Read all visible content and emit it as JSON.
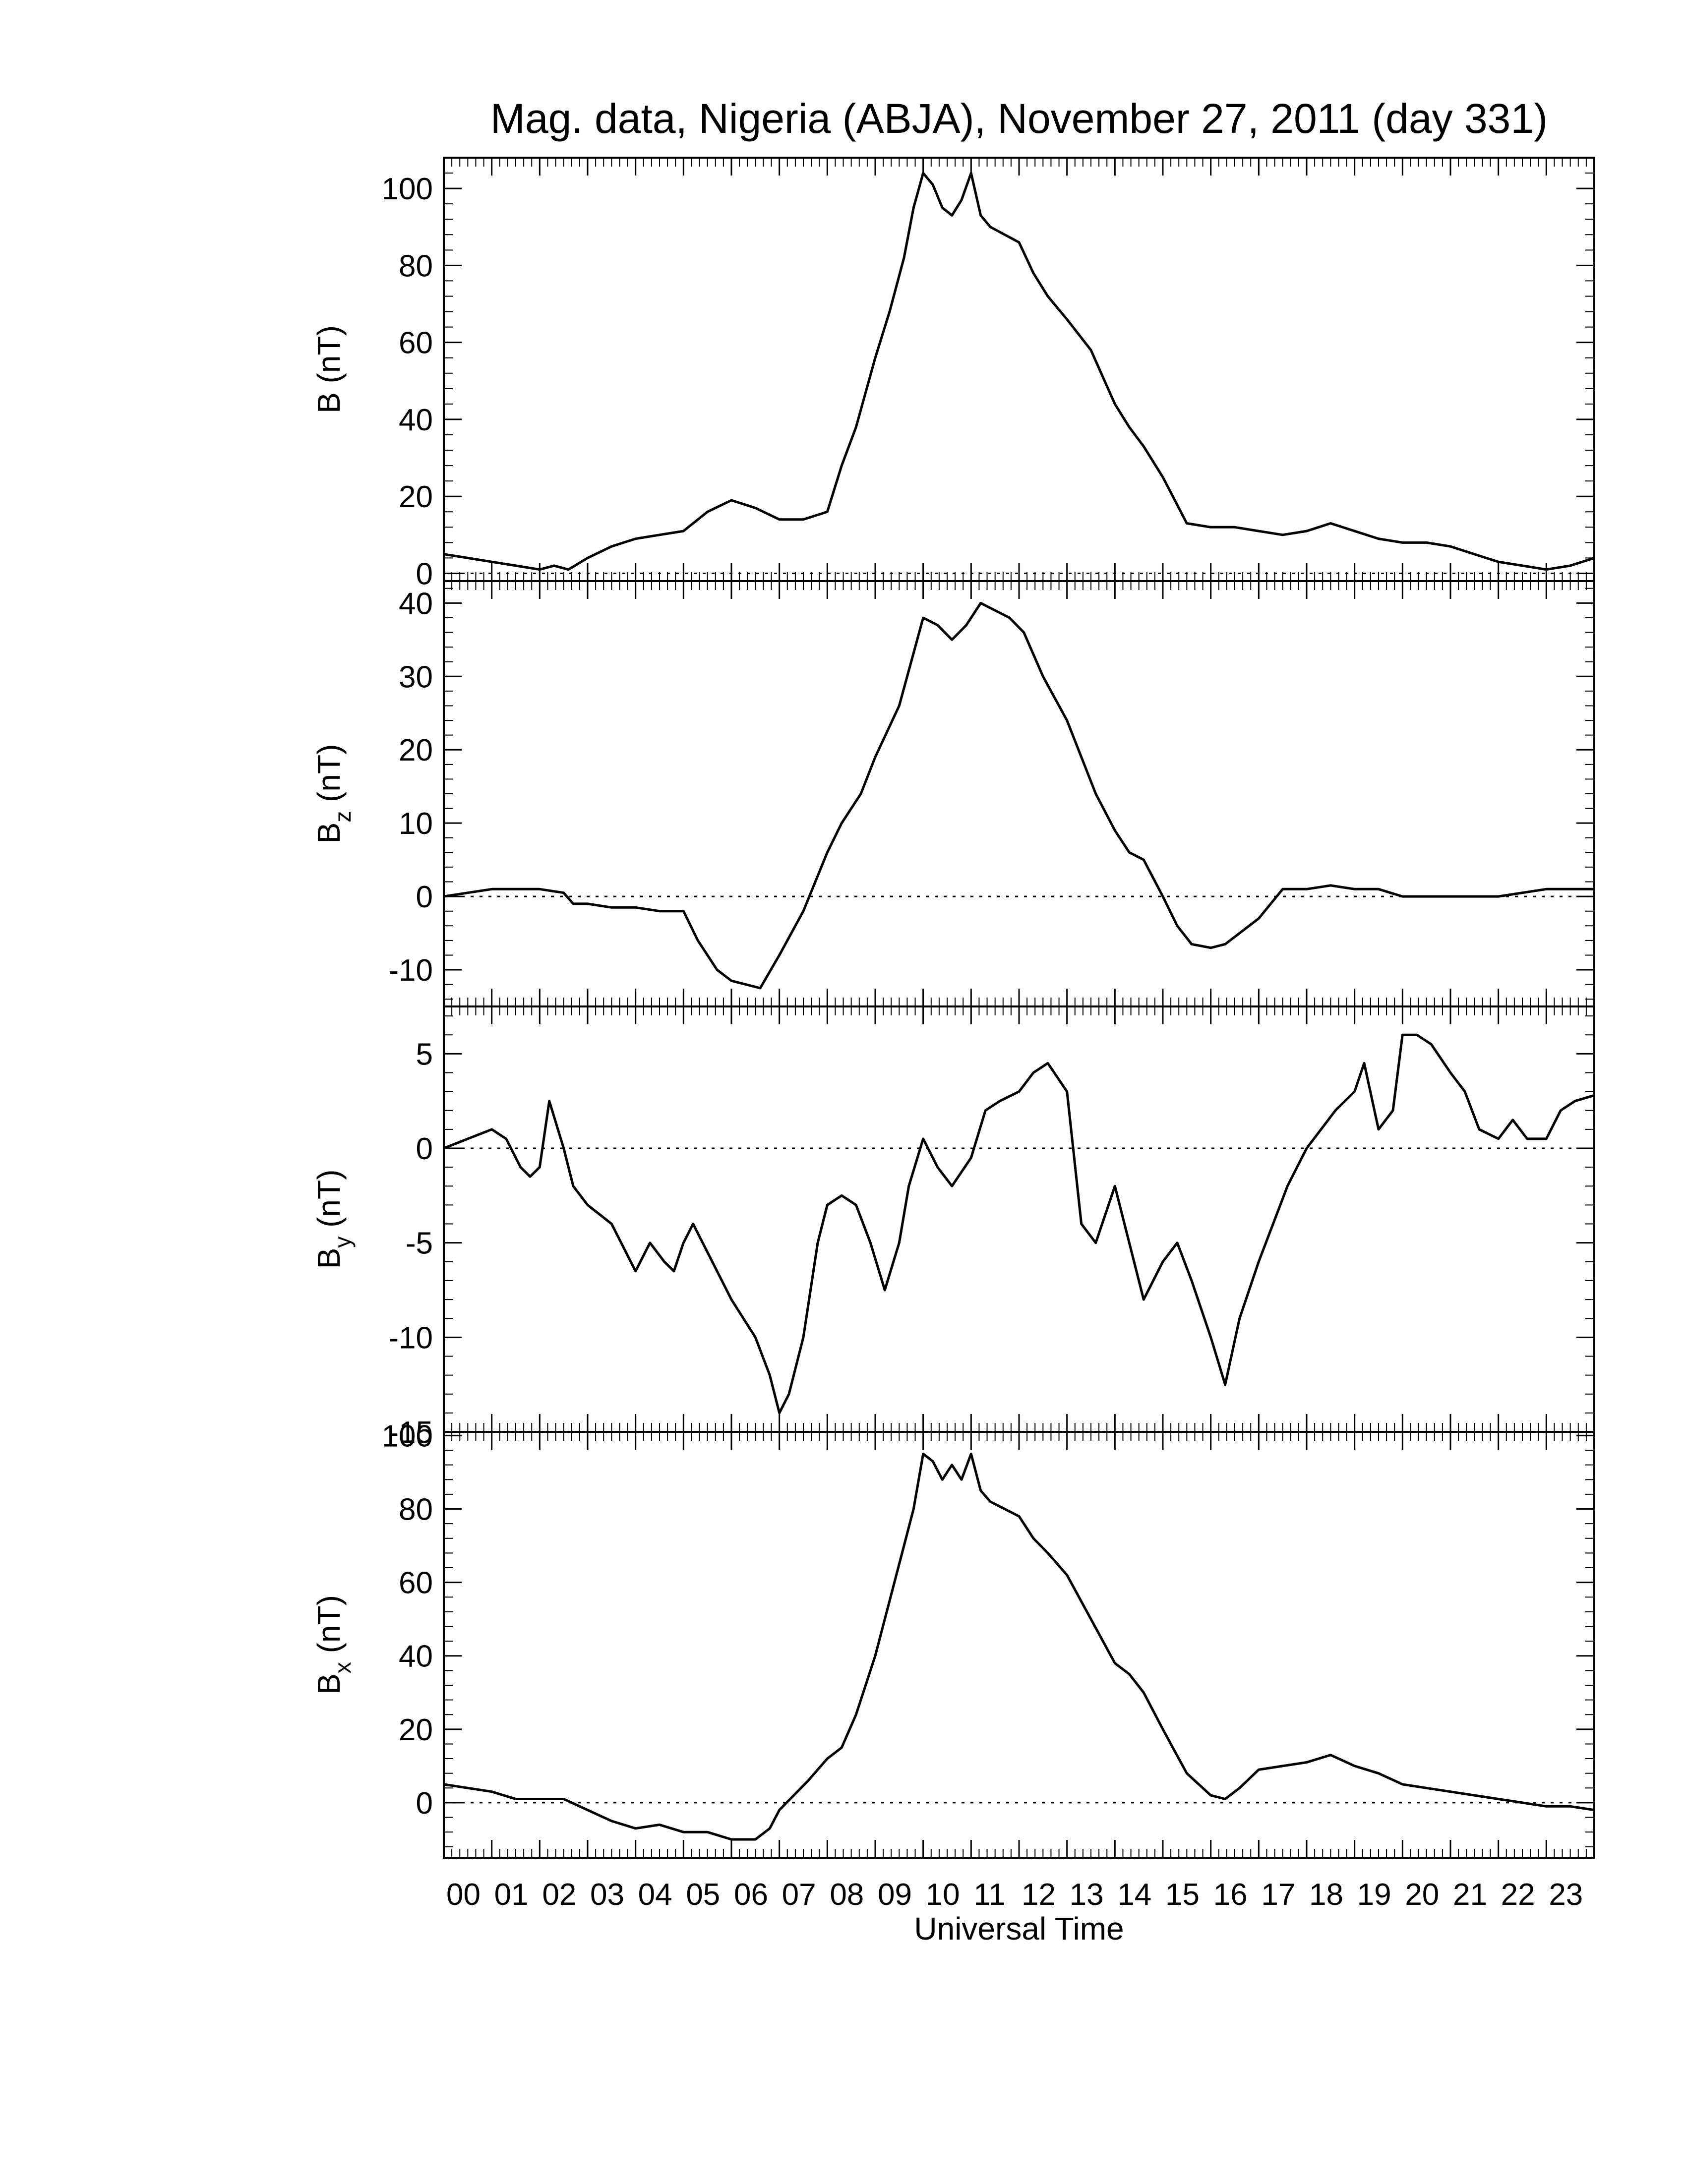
{
  "title": "Mag. data, Nigeria (ABJA), November 27, 2011 (day 331)",
  "x_axis": {
    "label": "Universal Time",
    "range": [
      0,
      24
    ],
    "tick_labels": [
      "00",
      "01",
      "02",
      "03",
      "04",
      "05",
      "06",
      "07",
      "08",
      "09",
      "10",
      "11",
      "12",
      "13",
      "14",
      "15",
      "16",
      "17",
      "18",
      "19",
      "20",
      "21",
      "22",
      "23"
    ],
    "minor_ticks_per_hour": 6
  },
  "colors": {
    "line": "#000000",
    "zero_line": "#000000",
    "frame": "#000000"
  },
  "chart_data": [
    {
      "type": "line",
      "id": "B",
      "ylabel_main": "B",
      "ylabel_sub": "",
      "ylabel_unit": "(nT)",
      "ylim": [
        -2,
        108
      ],
      "yticks": [
        0,
        20,
        40,
        60,
        80,
        100
      ],
      "zero_line": true,
      "x": [
        0,
        0.5,
        1.0,
        1.5,
        2.0,
        2.3,
        2.6,
        3.0,
        3.5,
        4.0,
        4.5,
        5.0,
        5.5,
        6.0,
        6.5,
        7.0,
        7.5,
        8.0,
        8.3,
        8.6,
        9.0,
        9.3,
        9.6,
        9.8,
        10.0,
        10.2,
        10.4,
        10.6,
        10.8,
        11.0,
        11.2,
        11.4,
        11.7,
        12.0,
        12.3,
        12.6,
        13.0,
        13.5,
        14.0,
        14.3,
        14.6,
        15.0,
        15.5,
        16.0,
        16.5,
        17.0,
        17.5,
        18.0,
        18.5,
        19.0,
        19.5,
        20.0,
        20.5,
        21.0,
        21.5,
        22.0,
        22.5,
        23.0,
        23.5,
        24.0
      ],
      "values": [
        5,
        4,
        3,
        2,
        1,
        2,
        1,
        4,
        7,
        9,
        10,
        11,
        16,
        19,
        17,
        14,
        14,
        16,
        28,
        38,
        56,
        68,
        82,
        95,
        104,
        101,
        95,
        93,
        97,
        104,
        93,
        90,
        88,
        86,
        78,
        72,
        66,
        58,
        44,
        38,
        33,
        25,
        13,
        12,
        12,
        11,
        10,
        11,
        13,
        11,
        9,
        8,
        8,
        7,
        5,
        3,
        2,
        1,
        2,
        4
      ]
    },
    {
      "type": "line",
      "id": "Bz",
      "ylabel_main": "B",
      "ylabel_sub": "z",
      "ylabel_unit": "(nT)",
      "ylim": [
        -15,
        43
      ],
      "yticks": [
        -10,
        0,
        10,
        20,
        30,
        40
      ],
      "zero_line": true,
      "x": [
        0,
        0.5,
        1.0,
        1.5,
        2.0,
        2.5,
        2.7,
        3.0,
        3.5,
        4.0,
        4.5,
        5.0,
        5.3,
        5.7,
        6.0,
        6.3,
        6.6,
        7.0,
        7.5,
        8.0,
        8.3,
        8.7,
        9.0,
        9.5,
        10.0,
        10.3,
        10.6,
        10.9,
        11.2,
        11.5,
        11.8,
        12.1,
        12.5,
        13.0,
        13.3,
        13.6,
        14.0,
        14.3,
        14.6,
        15.0,
        15.3,
        15.6,
        16.0,
        16.3,
        16.6,
        17.0,
        17.5,
        18.0,
        18.5,
        19.0,
        19.5,
        20.0,
        20.5,
        21.0,
        22.0,
        23.0,
        24.0
      ],
      "values": [
        0,
        0.5,
        1,
        1,
        1,
        0.5,
        -1,
        -1,
        -1.5,
        -1.5,
        -2,
        -2,
        -6,
        -10,
        -11.5,
        -12,
        -12.5,
        -8,
        -2,
        6,
        10,
        14,
        19,
        26,
        38,
        37,
        35,
        37,
        40,
        39,
        38,
        36,
        30,
        24,
        19,
        14,
        9,
        6,
        5,
        0,
        -4,
        -6.5,
        -7,
        -6.5,
        -5,
        -3,
        1,
        1,
        1.5,
        1,
        1,
        0,
        0,
        0,
        0,
        1,
        1
      ]
    },
    {
      "type": "line",
      "id": "By",
      "ylabel_main": "B",
      "ylabel_sub": "y",
      "ylabel_unit": "(nT)",
      "ylim": [
        -15,
        7.5
      ],
      "yticks": [
        -15,
        -10,
        -5,
        0,
        5
      ],
      "zero_line": true,
      "x": [
        0,
        0.5,
        1.0,
        1.3,
        1.6,
        1.8,
        2.0,
        2.2,
        2.5,
        2.7,
        3.0,
        3.5,
        4.0,
        4.3,
        4.6,
        4.8,
        5.0,
        5.2,
        5.5,
        6.0,
        6.5,
        6.8,
        7.0,
        7.2,
        7.5,
        7.8,
        8.0,
        8.3,
        8.6,
        8.9,
        9.2,
        9.5,
        9.7,
        10.0,
        10.3,
        10.6,
        11.0,
        11.3,
        11.6,
        12.0,
        12.3,
        12.6,
        13.0,
        13.3,
        13.6,
        14.0,
        14.3,
        14.6,
        15.0,
        15.3,
        15.6,
        16.0,
        16.3,
        16.6,
        17.0,
        17.3,
        17.6,
        18.0,
        18.3,
        18.6,
        19.0,
        19.2,
        19.5,
        19.8,
        20.0,
        20.3,
        20.6,
        21.0,
        21.3,
        21.6,
        22.0,
        22.3,
        22.6,
        23.0,
        23.3,
        23.6,
        24.0
      ],
      "values": [
        0,
        0.5,
        1,
        0.5,
        -1,
        -1.5,
        -1,
        2.5,
        0,
        -2,
        -3,
        -4,
        -6.5,
        -5,
        -6,
        -6.5,
        -5,
        -4,
        -5.5,
        -8,
        -10,
        -12,
        -14,
        -13,
        -10,
        -5,
        -3,
        -2.5,
        -3,
        -5,
        -7.5,
        -5,
        -2,
        0.5,
        -1,
        -2,
        -0.5,
        2,
        2.5,
        3,
        4,
        4.5,
        3,
        -4,
        -5,
        -2,
        -5,
        -8,
        -6,
        -5,
        -7,
        -10,
        -12.5,
        -9,
        -6,
        -4,
        -2,
        0,
        1,
        2,
        3,
        4.5,
        1,
        2,
        6,
        6,
        5.5,
        4,
        3,
        1,
        0.5,
        1.5,
        0.5,
        0.5,
        2,
        2.5,
        2.8
      ]
    },
    {
      "type": "line",
      "id": "Bx",
      "ylabel_main": "B",
      "ylabel_sub": "x",
      "ylabel_unit": "(nT)",
      "ylim": [
        -15,
        101
      ],
      "yticks": [
        0,
        20,
        40,
        60,
        80,
        100
      ],
      "zero_line": true,
      "x": [
        0,
        0.5,
        1.0,
        1.5,
        2.0,
        2.5,
        3.0,
        3.5,
        4.0,
        4.5,
        5.0,
        5.5,
        6.0,
        6.5,
        6.8,
        7.0,
        7.3,
        7.6,
        8.0,
        8.3,
        8.6,
        9.0,
        9.3,
        9.6,
        9.8,
        10.0,
        10.2,
        10.4,
        10.6,
        10.8,
        11.0,
        11.2,
        11.4,
        11.7,
        12.0,
        12.3,
        12.6,
        13.0,
        13.5,
        14.0,
        14.3,
        14.6,
        15.0,
        15.5,
        16.0,
        16.3,
        16.6,
        17.0,
        17.5,
        18.0,
        18.5,
        19.0,
        19.5,
        20.0,
        20.5,
        21.0,
        21.5,
        22.0,
        22.5,
        23.0,
        23.5,
        24.0
      ],
      "values": [
        5,
        4,
        3,
        1,
        1,
        1,
        -2,
        -5,
        -7,
        -6,
        -8,
        -8,
        -10,
        -10,
        -7,
        -2,
        2,
        6,
        12,
        15,
        24,
        40,
        55,
        70,
        80,
        95,
        93,
        88,
        92,
        88,
        95,
        85,
        82,
        80,
        78,
        72,
        68,
        62,
        50,
        38,
        35,
        30,
        20,
        8,
        2,
        1,
        4,
        9,
        10,
        11,
        13,
        10,
        8,
        5,
        4,
        3,
        2,
        1,
        0,
        -1,
        -1,
        -2
      ]
    }
  ]
}
